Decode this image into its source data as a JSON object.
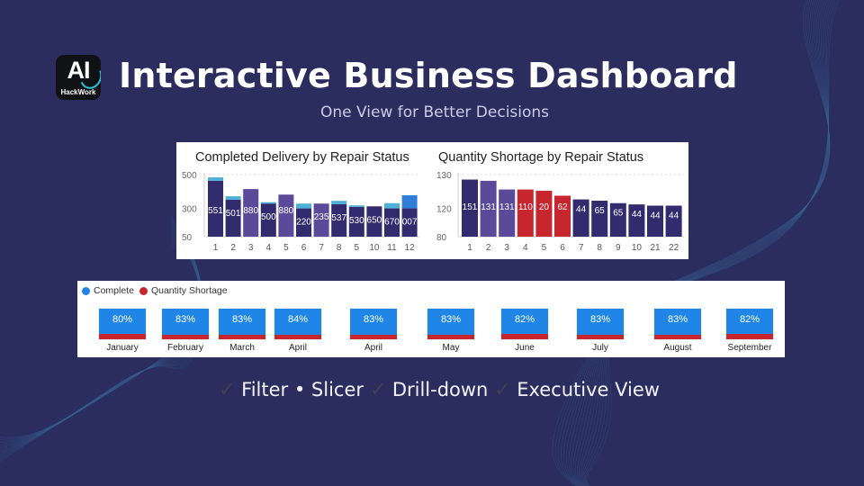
{
  "brand": {
    "logo_text": "AI",
    "logo_subtext": "HackWork",
    "icon": "ai-hackwork-logo-icon"
  },
  "header": {
    "title": "Interactive Business Dashboard",
    "subtitle": "One View for Better Decisions"
  },
  "colors": {
    "background": "#2a2d5e",
    "complete": "#1f86e8",
    "shortage": "#c8262f",
    "bar_dark": "#342a6e",
    "bar_mid": "#5a4a9a",
    "bar_light": "#4eb0d6",
    "bar_blue": "#2f7fd8"
  },
  "chart_data": [
    {
      "type": "bar",
      "title": "Completed Delivery by Repair Status",
      "xlabel": "",
      "ylabel": "",
      "ylim": [
        50,
        500
      ],
      "yticks": [
        500,
        300,
        50
      ],
      "categories": [
        "1",
        "2",
        "3",
        "4",
        "5",
        "6",
        "7",
        "8",
        "5",
        "10",
        "11",
        "12"
      ],
      "series": [
        {
          "name": "Base",
          "values": [
            455,
            318,
            395,
            290,
            355,
            255,
            290,
            285,
            265,
            270,
            255,
            255
          ]
        },
        {
          "name": "Top",
          "values": [
            25,
            25,
            0,
            10,
            0,
            35,
            0,
            25,
            12,
            0,
            38,
            95
          ]
        }
      ],
      "data_labels": [
        "551",
        "501",
        "880",
        "500",
        "880",
        "220",
        "235",
        "537",
        "530",
        "650",
        "670",
        "007"
      ],
      "grid": true
    },
    {
      "type": "bar",
      "title": "Quantity Shortage by Repair Status",
      "xlabel": "",
      "ylabel": "",
      "ylim": [
        80,
        130
      ],
      "yticks": [
        130,
        120,
        80
      ],
      "categories": [
        "1",
        "2",
        "3",
        "4",
        "5",
        "6",
        "7",
        "8",
        "9",
        "10",
        "21",
        "22"
      ],
      "values": [
        126,
        125,
        118,
        118,
        117,
        113,
        110,
        109,
        107,
        106,
        105,
        105
      ],
      "highlight": [
        false,
        false,
        false,
        true,
        true,
        true,
        false,
        false,
        false,
        false,
        false,
        false
      ],
      "data_labels": [
        "151",
        "131",
        "131",
        "110",
        "20",
        "62",
        "44",
        "65",
        "65",
        "44",
        "44",
        "44"
      ],
      "grid": true
    },
    {
      "type": "bar",
      "title": "",
      "legend": [
        {
          "name": "Complete"
        },
        {
          "name": "Quantity Shortage"
        }
      ],
      "legend_position": "top-left",
      "categories": [
        "January",
        "February",
        "March",
        "April",
        "April",
        "May",
        "June",
        "July",
        "August",
        "September"
      ],
      "series": [
        {
          "name": "Complete",
          "values": [
            80,
            83,
            83,
            84,
            83,
            83,
            82,
            83,
            83,
            82
          ]
        },
        {
          "name": "Quantity Shortage",
          "values": [
            20,
            17,
            17,
            16,
            17,
            17,
            18,
            17,
            17,
            18
          ]
        }
      ],
      "data_labels": [
        "80%",
        "83%",
        "83%",
        "84%",
        "83%",
        "83%",
        "82%",
        "83%",
        "83%",
        "82%"
      ]
    }
  ],
  "features": {
    "items": [
      "Filter • Slicer",
      "Drill-down",
      "Executive View"
    ],
    "check_icon": "check-icon"
  }
}
